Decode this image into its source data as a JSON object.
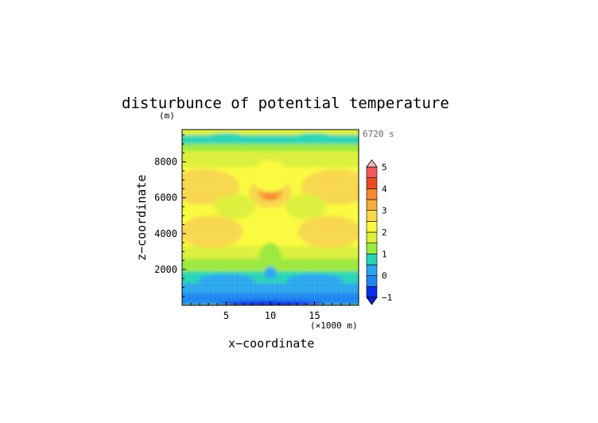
{
  "chart_data": {
    "type": "heatmap",
    "title": "disturbunce of potential temperature",
    "time_label": "6720 s",
    "xlabel": "x−coordinate",
    "x_unit": "(×1000 m)",
    "ylabel": "z−coordinate",
    "y_unit": "(m)",
    "xlim": [
      0,
      20
    ],
    "ylim": [
      0,
      9800
    ],
    "x_ticks": [
      5,
      10,
      15
    ],
    "y_ticks": [
      2000,
      4000,
      6000,
      8000
    ],
    "x_tick_labels": [
      "5",
      "10",
      "15"
    ],
    "y_tick_labels": [
      "2000",
      "4000",
      "6000",
      "8000"
    ],
    "colorbar": {
      "ticks": [
        -1,
        0,
        1,
        2,
        3,
        4,
        5
      ],
      "tick_labels": [
        "−1",
        "0",
        "1",
        "2",
        "3",
        "4",
        "5"
      ],
      "levels": [
        -1,
        -0.5,
        0,
        0.5,
        1,
        1.5,
        2,
        2.5,
        3,
        3.5,
        4,
        4.5,
        5
      ],
      "colors": [
        "#0a2ee8",
        "#1f86f2",
        "#2aa6ee",
        "#26d5b5",
        "#9be83e",
        "#dcf03a",
        "#fafa3e",
        "#f8d74b",
        "#f6ad3c",
        "#f6892f",
        "#ef4a24",
        "#f2595f",
        "#f58f94"
      ],
      "extend": "both",
      "over_color": "#f6b8b8",
      "under_color": "#0a1fd6"
    },
    "field_note_values": [
      {
        "x": 10,
        "z": 6300,
        "value": 3.8
      },
      {
        "x": 3.5,
        "z": 6700,
        "value": 2.9
      },
      {
        "x": 16.5,
        "z": 6700,
        "value": 2.9
      },
      {
        "x": 3.3,
        "z": 4100,
        "value": 2.7
      },
      {
        "x": 16.7,
        "z": 4100,
        "value": 2.7
      },
      {
        "x": 10,
        "z": 5000,
        "value": 2.3
      },
      {
        "x": 10,
        "z": 2500,
        "value": 0.9
      },
      {
        "x": 10,
        "z": 1800,
        "value": 0.1
      },
      {
        "x": 5,
        "z": 9300,
        "value": 0.8
      },
      {
        "x": 2,
        "z": 500,
        "value": 0.2
      },
      {
        "x": 10,
        "z": 100,
        "value": -0.7
      }
    ]
  }
}
